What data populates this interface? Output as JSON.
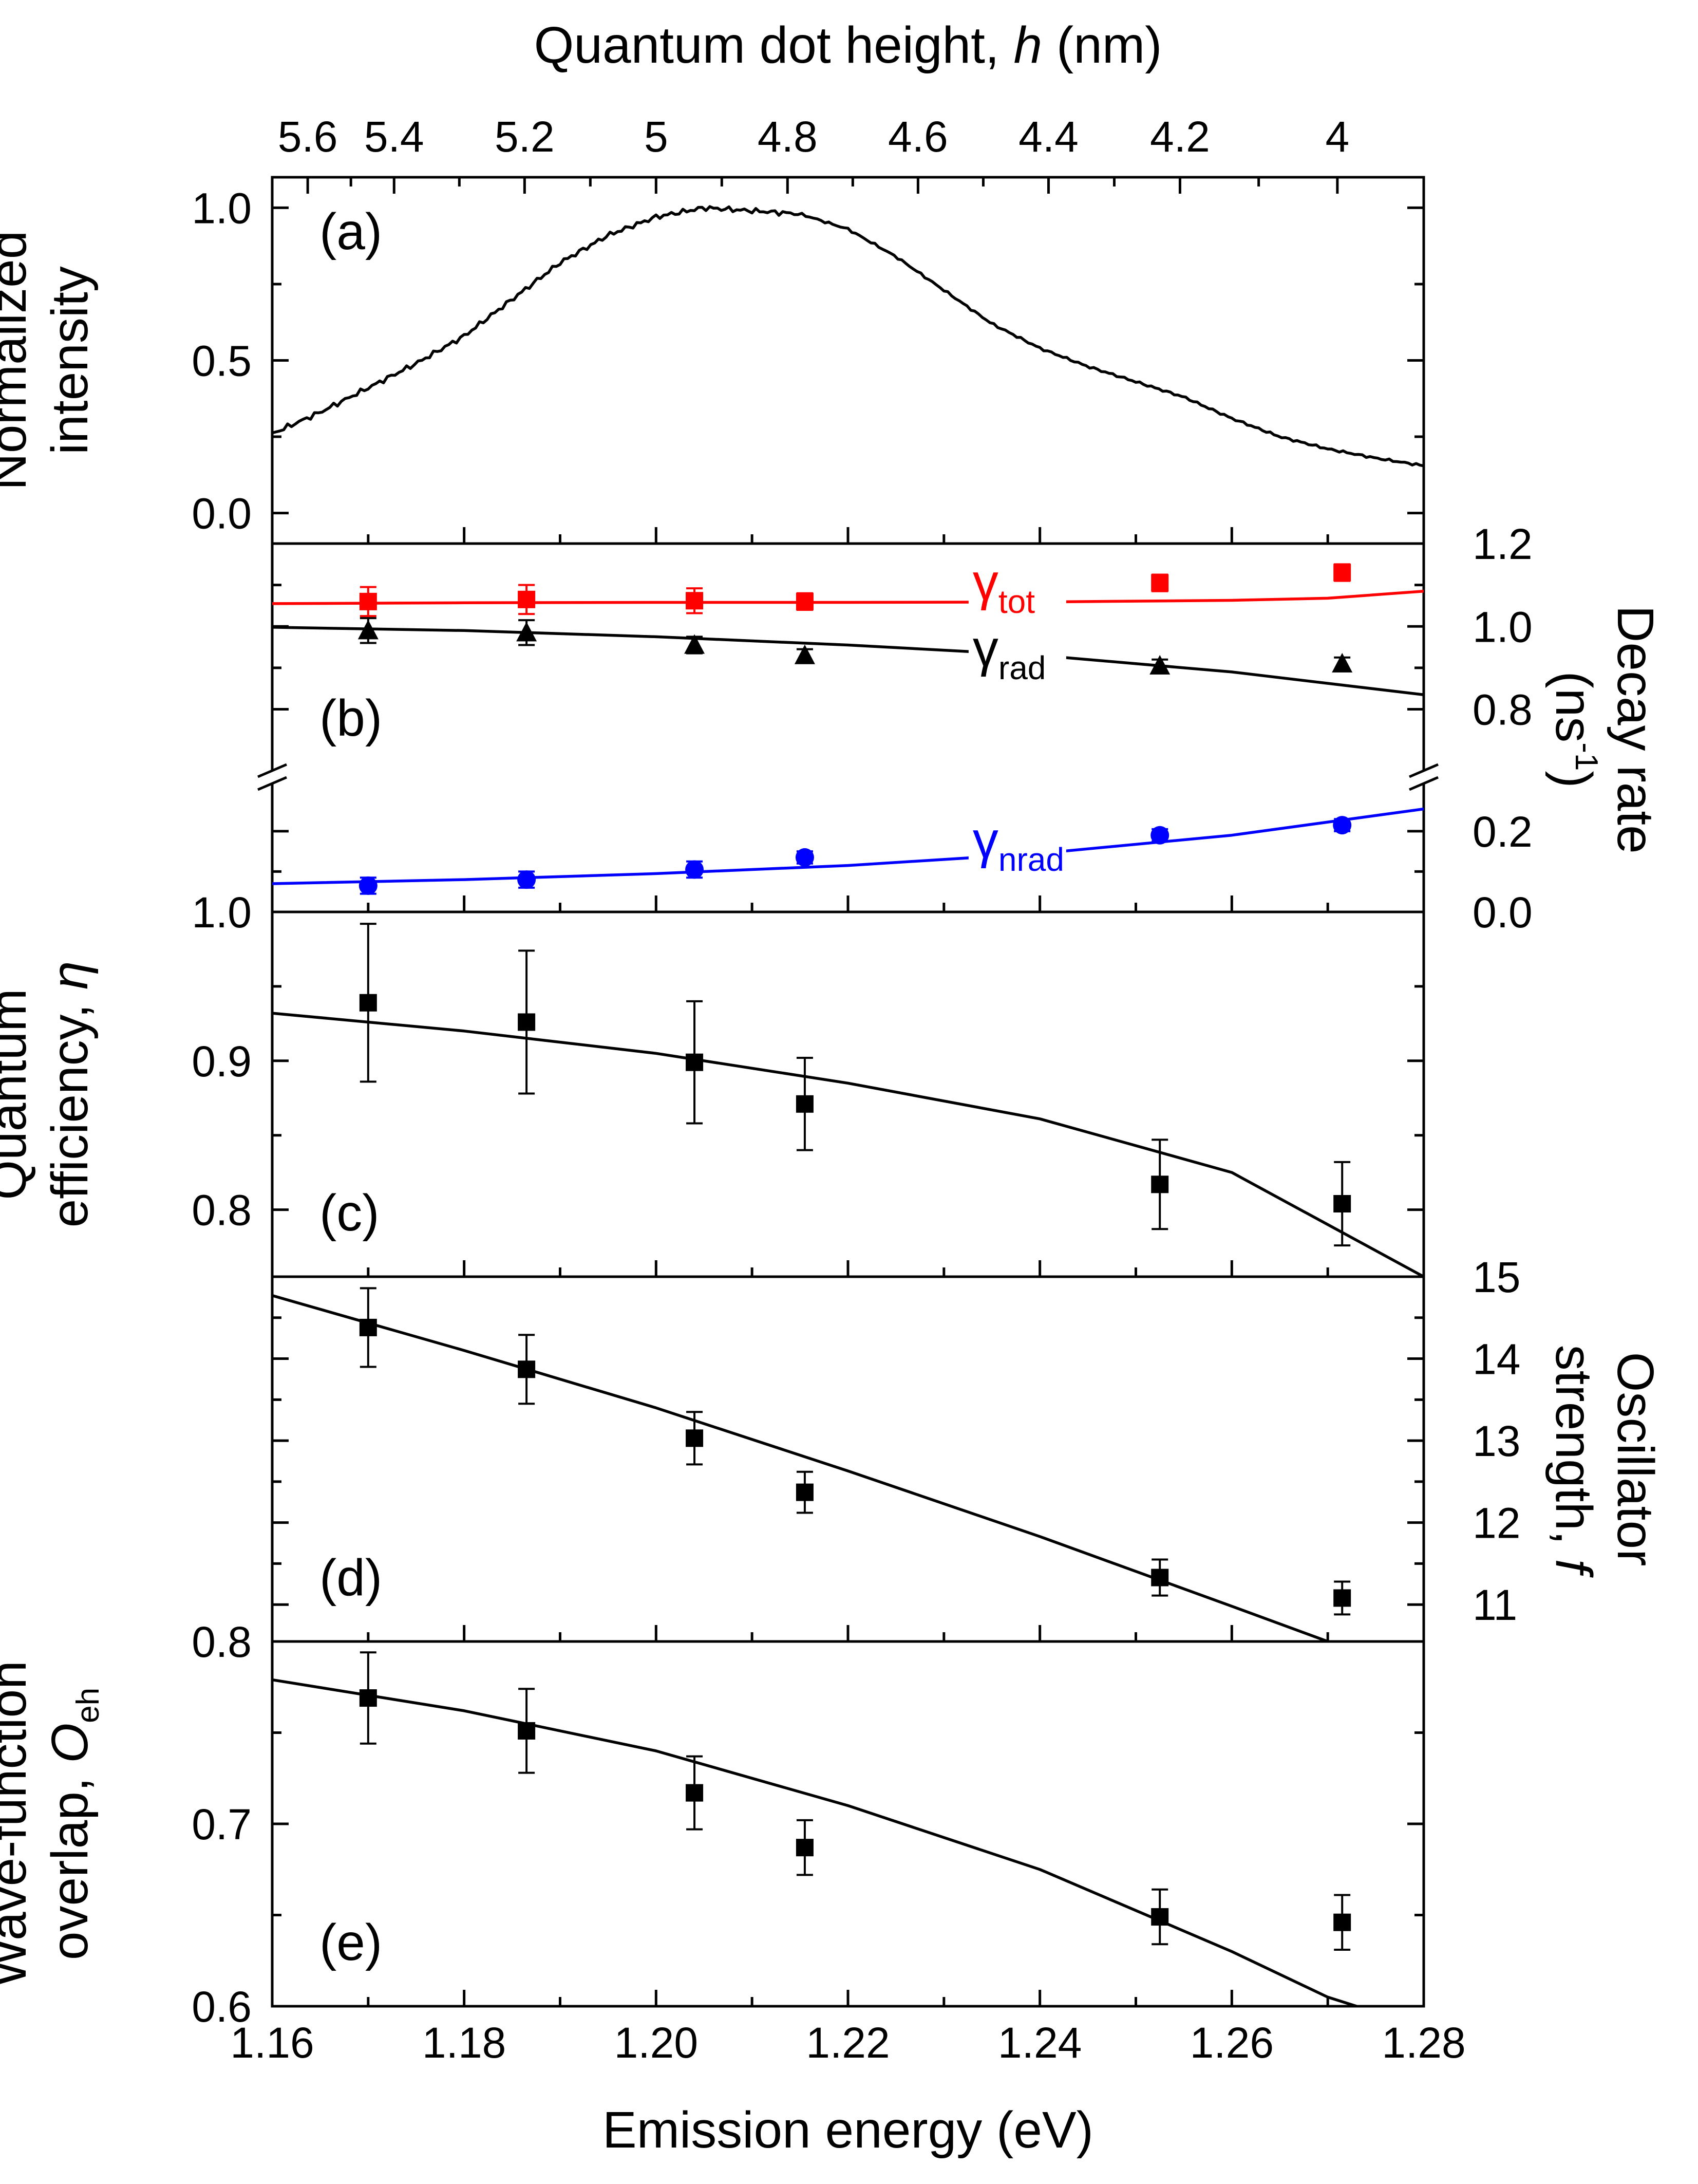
{
  "figure": {
    "x_axis": {
      "label": "Emission energy (eV)",
      "min": 1.16,
      "max": 1.28,
      "ticks": [
        1.16,
        1.18,
        1.2,
        1.22,
        1.24,
        1.26,
        1.28
      ],
      "tick_labels": [
        "1.16",
        "1.18",
        "1.20",
        "1.22",
        "1.24",
        "1.26",
        "1.28"
      ]
    },
    "top_axis": {
      "label_prefix": "Quantum dot height, ",
      "label_var": "h",
      "label_unit": " (nm)",
      "ticks": [
        {
          "label": "5.6",
          "energy": 1.1637
        },
        {
          "label": "5.4",
          "energy": 1.1727
        },
        {
          "label": "5.2",
          "energy": 1.1863
        },
        {
          "label": "5",
          "energy": 1.2
        },
        {
          "label": "4.8",
          "energy": 1.2137
        },
        {
          "label": "4.6",
          "energy": 1.2273
        },
        {
          "label": "4.4",
          "energy": 1.2409
        },
        {
          "label": "4.2",
          "energy": 1.2546
        },
        {
          "label": "4",
          "energy": 1.271
        }
      ]
    }
  },
  "chart_data": [
    {
      "panel": "(a)",
      "type": "line",
      "ylabel_lines": [
        "Normalized",
        "intensity"
      ],
      "ylim": [
        -0.1,
        1.1
      ],
      "yticks": [
        0.0,
        0.5,
        1.0
      ],
      "ytick_labels": [
        "0.0",
        "0.5",
        "1.0"
      ],
      "series": [
        {
          "color": "#000000",
          "x": [
            1.16,
            1.165,
            1.17,
            1.175,
            1.18,
            1.185,
            1.19,
            1.195,
            1.2,
            1.205,
            1.21,
            1.215,
            1.22,
            1.225,
            1.23,
            1.235,
            1.24,
            1.245,
            1.25,
            1.255,
            1.26,
            1.265,
            1.27,
            1.275,
            1.28
          ],
          "y": [
            0.26,
            0.33,
            0.41,
            0.49,
            0.58,
            0.7,
            0.82,
            0.91,
            0.97,
            1.0,
            0.99,
            0.98,
            0.93,
            0.84,
            0.73,
            0.62,
            0.54,
            0.48,
            0.43,
            0.38,
            0.31,
            0.25,
            0.21,
            0.18,
            0.155
          ]
        }
      ]
    },
    {
      "panel": "(b)",
      "type": "scatter",
      "ylabel": "Decay rate",
      "ylabel_unit_lines": [
        "(ns",
        "-1",
        ")"
      ],
      "yaxis_side": "right",
      "ybreak": true,
      "ylim_upper": [
        0.72,
        1.2
      ],
      "yticks_upper": [
        0.8,
        1.0,
        1.2
      ],
      "ytick_labels_upper": [
        "0.8",
        "1.0",
        "1.2"
      ],
      "ylim_lower": [
        0.0,
        0.28
      ],
      "yticks_lower": [
        0.0,
        0.2
      ],
      "ytick_labels_lower": [
        "0.0",
        "0.2"
      ],
      "series": [
        {
          "name": "γ",
          "subscript": "tot",
          "color": "#ff0000",
          "marker": "square",
          "break_segment": "upper",
          "x": [
            1.17,
            1.1865,
            1.204,
            1.2155,
            1.2525,
            1.2715
          ],
          "y": [
            1.06,
            1.065,
            1.062,
            1.06,
            1.105,
            1.13
          ],
          "yerr": [
            0.035,
            0.035,
            0.03,
            0.02,
            0.02,
            0.02
          ],
          "fit_x": [
            1.16,
            1.18,
            1.2,
            1.22,
            1.24,
            1.26,
            1.27,
            1.28
          ],
          "fit_y": [
            1.055,
            1.057,
            1.058,
            1.058,
            1.059,
            1.063,
            1.068,
            1.085
          ],
          "label_energy": 1.233,
          "label_value": 1.065
        },
        {
          "name": "γ",
          "subscript": "rad",
          "color": "#000000",
          "marker": "triangle",
          "break_segment": "upper",
          "x": [
            1.17,
            1.1865,
            1.204,
            1.2155,
            1.2525,
            1.2715
          ],
          "y": [
            0.99,
            0.985,
            0.955,
            0.93,
            0.905,
            0.91
          ],
          "yerr": [
            0.03,
            0.03,
            0.02,
            0.015,
            0.015,
            0.015
          ],
          "fit_x": [
            1.16,
            1.18,
            1.2,
            1.22,
            1.24,
            1.26,
            1.28
          ],
          "fit_y": [
            0.998,
            0.99,
            0.975,
            0.955,
            0.93,
            0.89,
            0.835
          ],
          "label_energy": 1.233,
          "label_value": 0.905
        },
        {
          "name": "γ",
          "subscript": "nrad",
          "color": "#0000ff",
          "marker": "circle",
          "break_segment": "lower",
          "x": [
            1.17,
            1.1865,
            1.204,
            1.2155,
            1.2525,
            1.2715
          ],
          "y": [
            0.065,
            0.08,
            0.105,
            0.135,
            0.19,
            0.215
          ],
          "yerr": [
            0.02,
            0.02,
            0.02,
            0.015,
            0.015,
            0.015
          ],
          "fit_x": [
            1.16,
            1.18,
            1.2,
            1.22,
            1.24,
            1.26,
            1.28
          ],
          "fit_y": [
            0.07,
            0.08,
            0.095,
            0.115,
            0.145,
            0.19,
            0.255
          ],
          "label_energy": 1.233,
          "label_value": 0.135
        }
      ]
    },
    {
      "panel": "(c)",
      "type": "scatter",
      "ylabel_lines": [
        "Quantum",
        "efficiency, "
      ],
      "ylabel_var": "η",
      "ylim": [
        0.755,
        1.0
      ],
      "yticks": [
        0.8,
        0.9,
        1.0
      ],
      "ytick_labels": [
        "0.8",
        "0.9",
        "1.0"
      ],
      "series": [
        {
          "color": "#000000",
          "marker": "square",
          "x": [
            1.17,
            1.1865,
            1.204,
            1.2155,
            1.2525,
            1.2715
          ],
          "y": [
            0.939,
            0.926,
            0.899,
            0.871,
            0.817,
            0.804
          ],
          "yerr": [
            0.053,
            0.048,
            0.041,
            0.031,
            0.03,
            0.028
          ],
          "fit_x": [
            1.16,
            1.18,
            1.2,
            1.22,
            1.24,
            1.26,
            1.27,
            1.28
          ],
          "fit_y": [
            0.932,
            0.92,
            0.905,
            0.885,
            0.861,
            0.825,
            0.79,
            0.755
          ]
        }
      ]
    },
    {
      "panel": "(d)",
      "type": "scatter",
      "ylabel_lines": [
        "Oscillator",
        "strength, "
      ],
      "ylabel_var": "f",
      "yaxis_side": "right",
      "ylim": [
        10.55,
        15.0
      ],
      "yticks": [
        11,
        12,
        13,
        14,
        15
      ],
      "ytick_labels": [
        "11",
        "12",
        "13",
        "14",
        "15"
      ],
      "series": [
        {
          "color": "#000000",
          "marker": "square",
          "x": [
            1.17,
            1.1865,
            1.204,
            1.2155,
            1.2525,
            1.2715
          ],
          "y": [
            14.38,
            13.87,
            13.03,
            12.37,
            11.33,
            11.08
          ],
          "yerr": [
            0.48,
            0.42,
            0.32,
            0.25,
            0.22,
            0.2
          ],
          "fit_x": [
            1.16,
            1.18,
            1.2,
            1.22,
            1.24,
            1.26,
            1.27
          ],
          "fit_y": [
            14.77,
            14.1,
            13.4,
            12.63,
            11.83,
            10.98,
            10.55
          ]
        }
      ]
    },
    {
      "panel": "(e)",
      "type": "scatter",
      "ylabel_lines": [
        "Wave-function",
        "overlap, "
      ],
      "ylabel_var": "O",
      "ylabel_sub": "eh",
      "ylim": [
        0.6,
        0.8
      ],
      "yticks": [
        0.6,
        0.7,
        0.8
      ],
      "ytick_labels": [
        "0.6",
        "0.7",
        "0.8"
      ],
      "series": [
        {
          "color": "#000000",
          "marker": "square",
          "x": [
            1.17,
            1.1865,
            1.204,
            1.2155,
            1.2525,
            1.2715
          ],
          "y": [
            0.769,
            0.751,
            0.717,
            0.687,
            0.649,
            0.646
          ],
          "yerr": [
            0.025,
            0.023,
            0.02,
            0.015,
            0.015,
            0.015
          ],
          "fit_x": [
            1.16,
            1.18,
            1.2,
            1.22,
            1.24,
            1.26,
            1.27,
            1.273
          ],
          "fit_y": [
            0.779,
            0.762,
            0.74,
            0.71,
            0.675,
            0.63,
            0.605,
            0.6
          ]
        }
      ]
    }
  ]
}
